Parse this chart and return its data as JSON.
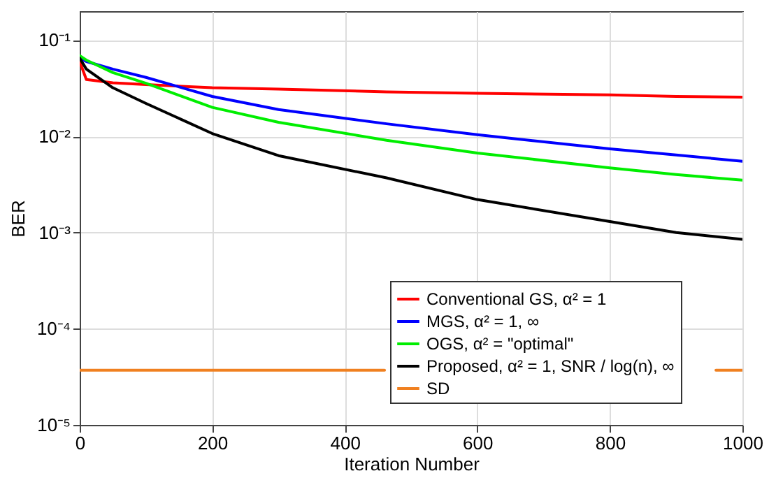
{
  "chart_data": {
    "type": "line",
    "xlabel": "Iteration Number",
    "ylabel": "BER",
    "log": "y",
    "grid": true,
    "legend": "bottom right",
    "marker": "none",
    "line_style": "solid",
    "xlim": [
      0,
      1000
    ],
    "xticks": [
      0,
      200,
      400,
      600,
      800,
      1000
    ],
    "ylim": [
      1e-05,
      0.2
    ],
    "yticks": [
      {
        "value": 1e-05,
        "label": "10⁻⁵"
      },
      {
        "value": 0.0001,
        "label": "10⁻⁴"
      },
      {
        "value": 0.001,
        "label": "10⁻³"
      },
      {
        "value": 0.01,
        "label": "10⁻²"
      },
      {
        "value": 0.1,
        "label": "10⁻¹"
      }
    ],
    "x": [
      0,
      10,
      50,
      100,
      200,
      300,
      463,
      600,
      800,
      900,
      1000
    ],
    "series": [
      {
        "name": "Conventional GS, α² = 1",
        "color": "#ff0000",
        "values": [
          0.06,
          0.039,
          0.036,
          0.0345,
          0.032,
          0.031,
          0.029,
          0.028,
          0.027,
          0.026,
          0.0255
        ]
      },
      {
        "name": "MGS, α² = 1, ∞",
        "color": "#0000ff",
        "values": [
          0.065,
          0.06,
          0.05,
          0.041,
          0.026,
          0.019,
          0.0135,
          0.0104,
          0.0074,
          0.0064,
          0.0055
        ]
      },
      {
        "name": "OGS, α² = \"optimal\"",
        "color": "#00ee00",
        "values": [
          0.069,
          0.062,
          0.046,
          0.0356,
          0.02,
          0.014,
          0.0091,
          0.0067,
          0.0047,
          0.004,
          0.0035
        ]
      },
      {
        "name": "Proposed, α² = 1, SNR / log(n), ∞",
        "color": "#000000",
        "values": [
          0.065,
          0.05,
          0.032,
          0.022,
          0.0107,
          0.0063,
          0.0037,
          0.0022,
          0.0013,
          0.001,
          0.00085
        ]
      },
      {
        "name": "SD",
        "color": "#f08020",
        "x": [
          0,
          460,
          470,
          960,
          1000
        ],
        "values": [
          3.7e-05,
          3.7e-05,
          null,
          3.7e-05,
          3.7e-05
        ]
      }
    ]
  }
}
